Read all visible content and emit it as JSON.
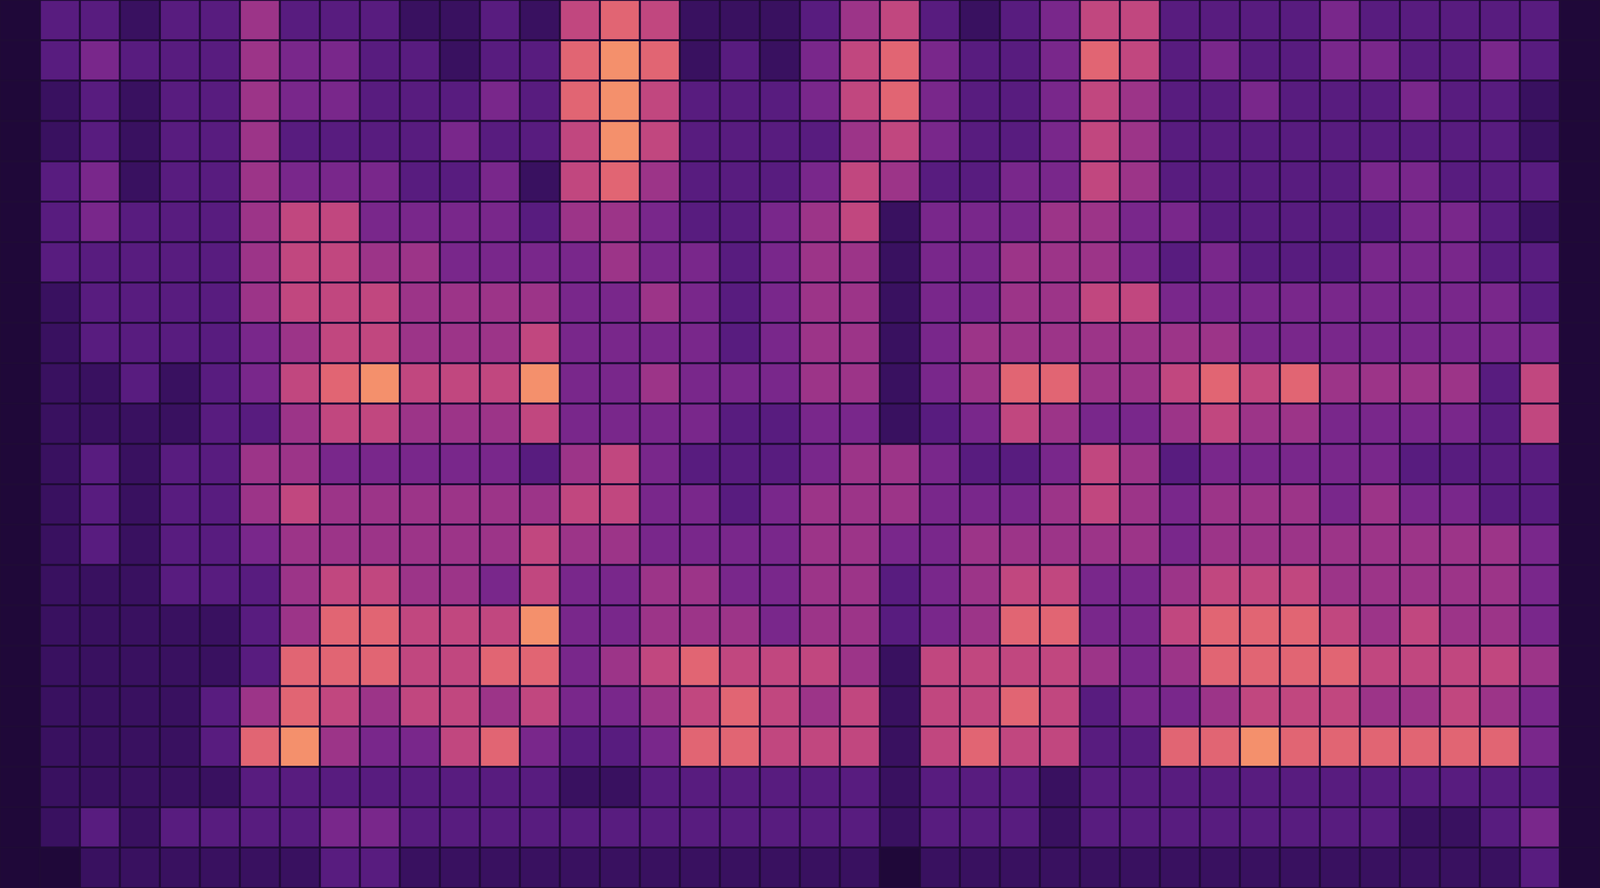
{
  "chart_data": {
    "type": "heatmap",
    "tick_labels": false,
    "value_range": [
      0,
      9
    ],
    "cells": [
      [
        1,
        3,
        3,
        2,
        3,
        3,
        5,
        3,
        3,
        3,
        2,
        2,
        3,
        2,
        6,
        7,
        6,
        2,
        2,
        2,
        3,
        5,
        6,
        3,
        2,
        3,
        4,
        6,
        6,
        3,
        3,
        3,
        3,
        4,
        3,
        3,
        3,
        3,
        3,
        1
      ],
      [
        1,
        3,
        4,
        3,
        3,
        3,
        5,
        4,
        4,
        3,
        3,
        2,
        3,
        3,
        7,
        8,
        7,
        2,
        3,
        2,
        4,
        6,
        7,
        4,
        3,
        3,
        4,
        7,
        6,
        3,
        4,
        3,
        3,
        4,
        4,
        3,
        3,
        4,
        3,
        1
      ],
      [
        1,
        2,
        3,
        2,
        3,
        3,
        5,
        4,
        4,
        3,
        3,
        3,
        4,
        3,
        7,
        8,
        6,
        3,
        3,
        3,
        4,
        6,
        7,
        4,
        3,
        3,
        4,
        6,
        5,
        3,
        3,
        4,
        3,
        3,
        3,
        4,
        3,
        3,
        2,
        1
      ],
      [
        1,
        2,
        3,
        2,
        3,
        3,
        5,
        3,
        3,
        3,
        3,
        4,
        3,
        3,
        6,
        8,
        6,
        3,
        3,
        3,
        3,
        5,
        6,
        4,
        3,
        3,
        4,
        6,
        5,
        3,
        3,
        3,
        3,
        3,
        3,
        3,
        3,
        3,
        2,
        1
      ],
      [
        1,
        3,
        4,
        2,
        3,
        3,
        5,
        4,
        4,
        4,
        3,
        3,
        4,
        2,
        6,
        7,
        5,
        3,
        3,
        3,
        4,
        6,
        5,
        3,
        3,
        4,
        4,
        6,
        5,
        3,
        3,
        3,
        3,
        3,
        4,
        4,
        3,
        3,
        3,
        1
      ],
      [
        1,
        3,
        4,
        3,
        3,
        3,
        5,
        6,
        6,
        4,
        4,
        4,
        4,
        3,
        5,
        5,
        4,
        3,
        3,
        4,
        5,
        6,
        2,
        4,
        4,
        4,
        5,
        5,
        4,
        4,
        3,
        3,
        3,
        3,
        3,
        4,
        4,
        3,
        2,
        1
      ],
      [
        1,
        3,
        3,
        3,
        3,
        3,
        5,
        6,
        6,
        5,
        5,
        4,
        4,
        4,
        4,
        5,
        4,
        4,
        3,
        4,
        5,
        5,
        2,
        4,
        4,
        5,
        5,
        5,
        4,
        3,
        4,
        3,
        3,
        3,
        4,
        4,
        4,
        3,
        3,
        1
      ],
      [
        1,
        2,
        3,
        3,
        3,
        3,
        5,
        6,
        6,
        6,
        5,
        5,
        5,
        5,
        4,
        4,
        5,
        4,
        3,
        4,
        5,
        5,
        2,
        4,
        4,
        5,
        5,
        6,
        6,
        4,
        4,
        4,
        4,
        4,
        4,
        4,
        4,
        4,
        3,
        1
      ],
      [
        1,
        2,
        3,
        3,
        3,
        3,
        4,
        5,
        6,
        6,
        5,
        5,
        5,
        6,
        4,
        4,
        4,
        4,
        3,
        4,
        5,
        5,
        2,
        4,
        5,
        5,
        5,
        5,
        5,
        5,
        5,
        4,
        4,
        4,
        4,
        4,
        4,
        4,
        4,
        1
      ],
      [
        1,
        2,
        2,
        3,
        2,
        3,
        4,
        6,
        7,
        8,
        6,
        6,
        6,
        8,
        4,
        4,
        5,
        4,
        4,
        4,
        5,
        5,
        2,
        4,
        5,
        7,
        7,
        5,
        5,
        6,
        7,
        6,
        7,
        5,
        5,
        5,
        5,
        3,
        6,
        1
      ],
      [
        1,
        2,
        2,
        2,
        2,
        3,
        3,
        5,
        6,
        6,
        5,
        5,
        5,
        6,
        4,
        4,
        4,
        4,
        3,
        3,
        4,
        4,
        2,
        3,
        4,
        6,
        5,
        4,
        4,
        5,
        6,
        5,
        5,
        4,
        4,
        4,
        4,
        3,
        6,
        1
      ],
      [
        1,
        2,
        3,
        2,
        3,
        3,
        5,
        5,
        4,
        4,
        4,
        4,
        4,
        3,
        5,
        6,
        4,
        3,
        3,
        3,
        4,
        5,
        5,
        4,
        3,
        3,
        4,
        6,
        5,
        3,
        4,
        4,
        4,
        4,
        4,
        3,
        3,
        3,
        3,
        1
      ],
      [
        1,
        2,
        3,
        2,
        3,
        3,
        5,
        6,
        5,
        5,
        5,
        5,
        5,
        5,
        6,
        6,
        4,
        4,
        3,
        4,
        5,
        5,
        5,
        4,
        4,
        4,
        5,
        6,
        5,
        4,
        5,
        5,
        5,
        4,
        5,
        4,
        4,
        3,
        3,
        1
      ],
      [
        1,
        2,
        3,
        2,
        3,
        3,
        4,
        5,
        5,
        5,
        5,
        5,
        5,
        6,
        5,
        5,
        4,
        4,
        4,
        4,
        5,
        5,
        4,
        4,
        5,
        5,
        5,
        5,
        5,
        4,
        5,
        5,
        5,
        5,
        5,
        5,
        5,
        5,
        4,
        1
      ],
      [
        1,
        2,
        2,
        2,
        3,
        3,
        3,
        5,
        6,
        6,
        5,
        5,
        4,
        6,
        4,
        4,
        5,
        5,
        4,
        4,
        5,
        5,
        3,
        4,
        5,
        6,
        6,
        4,
        4,
        5,
        6,
        6,
        6,
        5,
        5,
        5,
        5,
        5,
        4,
        1
      ],
      [
        1,
        2,
        2,
        2,
        2,
        2,
        3,
        5,
        7,
        7,
        6,
        6,
        6,
        8,
        4,
        4,
        5,
        5,
        5,
        4,
        5,
        5,
        3,
        4,
        5,
        7,
        7,
        4,
        4,
        6,
        7,
        7,
        7,
        6,
        5,
        6,
        5,
        5,
        4,
        1
      ],
      [
        1,
        2,
        2,
        2,
        2,
        2,
        3,
        7,
        7,
        7,
        6,
        6,
        7,
        7,
        4,
        5,
        6,
        7,
        6,
        6,
        6,
        5,
        2,
        6,
        6,
        6,
        6,
        5,
        4,
        5,
        7,
        7,
        7,
        7,
        6,
        6,
        6,
        6,
        5,
        1
      ],
      [
        1,
        2,
        2,
        2,
        2,
        3,
        5,
        7,
        6,
        5,
        6,
        6,
        5,
        6,
        4,
        4,
        5,
        6,
        7,
        6,
        5,
        6,
        2,
        6,
        6,
        7,
        6,
        3,
        4,
        4,
        5,
        6,
        6,
        6,
        5,
        5,
        6,
        5,
        4,
        1
      ],
      [
        1,
        2,
        2,
        2,
        2,
        3,
        7,
        8,
        5,
        4,
        4,
        6,
        7,
        4,
        3,
        3,
        4,
        7,
        7,
        6,
        6,
        6,
        2,
        6,
        7,
        6,
        6,
        3,
        3,
        7,
        7,
        8,
        7,
        7,
        7,
        7,
        7,
        7,
        4,
        1
      ],
      [
        1,
        2,
        2,
        2,
        2,
        2,
        3,
        3,
        3,
        3,
        3,
        3,
        3,
        3,
        2,
        2,
        3,
        3,
        3,
        3,
        3,
        3,
        2,
        3,
        3,
        3,
        2,
        3,
        3,
        3,
        3,
        3,
        3,
        3,
        3,
        3,
        3,
        3,
        3,
        1
      ],
      [
        1,
        2,
        3,
        2,
        3,
        3,
        3,
        3,
        4,
        4,
        3,
        3,
        3,
        3,
        3,
        3,
        3,
        3,
        3,
        3,
        3,
        3,
        2,
        3,
        3,
        3,
        2,
        3,
        3,
        3,
        3,
        3,
        3,
        3,
        3,
        2,
        2,
        3,
        4,
        1
      ],
      [
        1,
        1,
        2,
        2,
        2,
        2,
        2,
        2,
        3,
        3,
        2,
        2,
        2,
        2,
        2,
        2,
        2,
        2,
        2,
        2,
        2,
        2,
        1,
        2,
        2,
        2,
        2,
        2,
        2,
        2,
        2,
        2,
        2,
        2,
        2,
        2,
        2,
        2,
        3,
        1
      ]
    ]
  }
}
